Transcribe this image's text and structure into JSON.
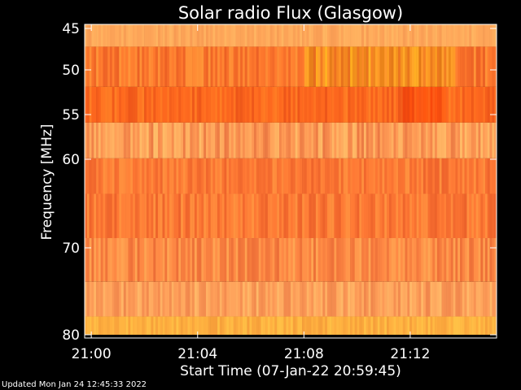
{
  "chart_data": {
    "type": "heatmap",
    "title": "Solar radio Flux (Glasgow)",
    "ylabel": "Frequency [MHz]",
    "xlabel": "Start Time (07-Jan-22 20:59:45)",
    "y_ticks": [
      {
        "value": 45,
        "label": "45"
      },
      {
        "value": 50,
        "label": "50"
      },
      {
        "value": 55,
        "label": "55"
      },
      {
        "value": 60,
        "label": "60"
      },
      {
        "value": 70,
        "label": "70"
      },
      {
        "value": 80,
        "label": "80"
      }
    ],
    "x_ticks": [
      {
        "value": 0.25,
        "label": "21:00"
      },
      {
        "value": 4.25,
        "label": "21:04"
      },
      {
        "value": 8.25,
        "label": "21:08"
      },
      {
        "value": 12.25,
        "label": "21:12"
      }
    ],
    "xlim": [
      0,
      15.5
    ],
    "ylim": [
      80,
      45
    ],
    "bands": [
      {
        "from": 44.2,
        "to": 47.2,
        "base": "#ffa85a",
        "variation": 0.08
      },
      {
        "from": 47.2,
        "to": 51.9,
        "base": "#ff7a2e",
        "variation": 0.22,
        "hot_start": 8.25,
        "hot_end": 13.9,
        "hot_color": "#f29a1a"
      },
      {
        "from": 51.9,
        "to": 55.9,
        "base": "#ff6a1f",
        "variation": 0.2,
        "hot_start": 11.9,
        "hot_end": 13.6,
        "hot_color": "#ff4a0a"
      },
      {
        "from": 55.9,
        "to": 59.9,
        "base": "#ff9a55",
        "variation": 0.22
      },
      {
        "from": 59.9,
        "to": 63.9,
        "base": "#ff7a35",
        "variation": 0.18
      },
      {
        "from": 63.9,
        "to": 68.9,
        "base": "#ff7a35",
        "variation": 0.2
      },
      {
        "from": 68.9,
        "to": 73.9,
        "base": "#ff8a45",
        "variation": 0.2
      },
      {
        "from": 73.9,
        "to": 77.9,
        "base": "#ffa05a",
        "variation": 0.16
      },
      {
        "from": 77.9,
        "to": 80.0,
        "base": "#ffb040",
        "variation": 0.1
      }
    ],
    "footer": "Updated Mon Jan 24 12:45:33 2022"
  }
}
